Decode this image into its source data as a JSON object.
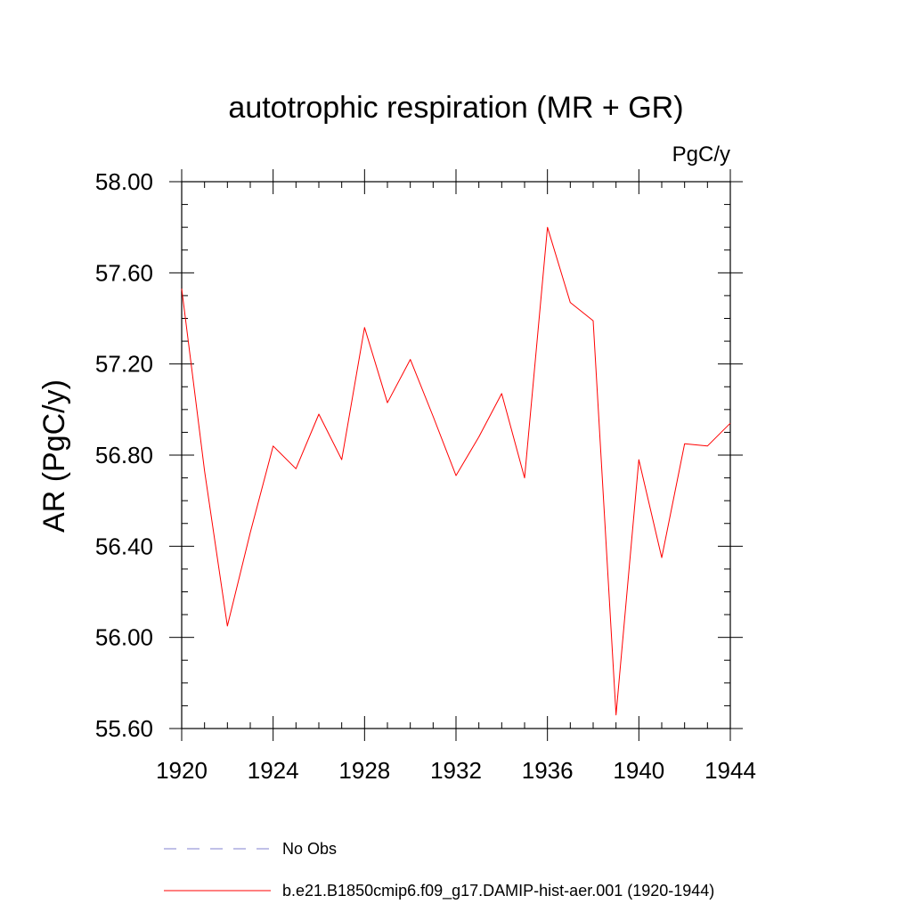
{
  "chart_data": {
    "type": "line",
    "title": "autotrophic respiration (MR + GR)",
    "units": "PgC/y",
    "ylabel": "AR  (PgC/y)",
    "xlabel": "",
    "xlim": [
      1920,
      1944
    ],
    "ylim": [
      55.6,
      58.0
    ],
    "xticks": [
      1920,
      1924,
      1928,
      1932,
      1936,
      1940,
      1944
    ],
    "xtick_labels": [
      "1920",
      "1924",
      "1928",
      "1932",
      "1936",
      "1940",
      "1944"
    ],
    "yticks": [
      55.6,
      56.0,
      56.4,
      56.8,
      57.2,
      57.6,
      58.0
    ],
    "ytick_labels": [
      "55.60",
      "56.00",
      "56.40",
      "56.80",
      "57.20",
      "57.60",
      "58.00"
    ],
    "grid": false,
    "legend_position": "bottom",
    "series": [
      {
        "name": "b.e21.B1850cmip6.f09_g17.DAMIP-hist-aer.001 (1920-1944)",
        "color": "#ff0000",
        "style": "solid",
        "x": [
          1920,
          1921,
          1922,
          1923,
          1924,
          1925,
          1926,
          1927,
          1928,
          1929,
          1930,
          1931,
          1932,
          1933,
          1934,
          1935,
          1936,
          1937,
          1938,
          1939,
          1940,
          1941,
          1942,
          1943,
          1944
        ],
        "y": [
          57.53,
          56.73,
          56.05,
          56.46,
          56.84,
          56.74,
          56.98,
          56.78,
          57.36,
          57.03,
          57.22,
          56.97,
          56.71,
          56.88,
          57.07,
          56.7,
          57.8,
          57.47,
          57.39,
          55.66,
          56.78,
          56.35,
          56.85,
          56.84,
          56.94
        ]
      }
    ],
    "legend": [
      {
        "label": "No Obs",
        "color": "#8080d0",
        "style": "dashed"
      },
      {
        "label": "b.e21.B1850cmip6.f09_g17.DAMIP-hist-aer.001 (1920-1944)",
        "color": "#ff0000",
        "style": "solid"
      }
    ]
  }
}
